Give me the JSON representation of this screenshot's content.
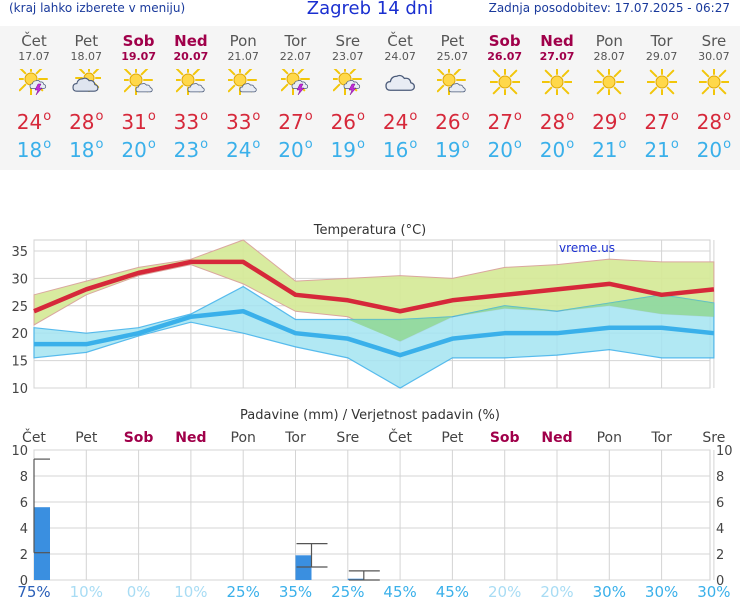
{
  "header": {
    "hint": "(kraj lahko izberete v meniju)",
    "title": "Zagreb 14 dni",
    "updated": "Zadnja posodobitev: 17.07.2025 - 06:27"
  },
  "days": [
    {
      "name": "Čet",
      "date": "17.07",
      "weekend": false,
      "icon": "sun-cloud-thunder-icon",
      "max": "24",
      "min": "18"
    },
    {
      "name": "Pet",
      "date": "18.07",
      "weekend": false,
      "icon": "cloud-sun-icon",
      "max": "28",
      "min": "18"
    },
    {
      "name": "Sob",
      "date": "19.07",
      "weekend": true,
      "icon": "sun-small-cloud-icon",
      "max": "31",
      "min": "20"
    },
    {
      "name": "Ned",
      "date": "20.07",
      "weekend": true,
      "icon": "sun-small-cloud-icon",
      "max": "33",
      "min": "23"
    },
    {
      "name": "Pon",
      "date": "21.07",
      "weekend": false,
      "icon": "sun-small-cloud-icon",
      "max": "33",
      "min": "24"
    },
    {
      "name": "Tor",
      "date": "22.07",
      "weekend": false,
      "icon": "sun-cloud-thunder-icon",
      "max": "27",
      "min": "20"
    },
    {
      "name": "Sre",
      "date": "23.07",
      "weekend": false,
      "icon": "sun-cloud-thunder-icon",
      "max": "26",
      "min": "19"
    },
    {
      "name": "Čet",
      "date": "24.07",
      "weekend": false,
      "icon": "cloud-icon",
      "max": "24",
      "min": "16"
    },
    {
      "name": "Pet",
      "date": "25.07",
      "weekend": false,
      "icon": "sun-small-cloud-icon",
      "max": "26",
      "min": "19"
    },
    {
      "name": "Sob",
      "date": "26.07",
      "weekend": true,
      "icon": "sun-icon",
      "max": "27",
      "min": "20"
    },
    {
      "name": "Ned",
      "date": "27.07",
      "weekend": true,
      "icon": "sun-icon",
      "max": "28",
      "min": "20"
    },
    {
      "name": "Pon",
      "date": "28.07",
      "weekend": false,
      "icon": "sun-icon",
      "max": "29",
      "min": "21"
    },
    {
      "name": "Tor",
      "date": "29.07",
      "weekend": false,
      "icon": "sun-icon",
      "max": "27",
      "min": "21"
    },
    {
      "name": "Sre",
      "date": "30.07",
      "weekend": false,
      "icon": "sun-icon",
      "max": "28",
      "min": "20"
    }
  ],
  "colors": {
    "max": "#d6283a",
    "min": "#3ab0ea",
    "weekend": "#a0004a",
    "max_band": "#d6ea9a",
    "min_band": "#a4e4f2",
    "overlap_band": "#8ed68a",
    "rain_bar": "#3a8fe0",
    "grid": "#d4d4d4"
  },
  "chart_data": [
    {
      "type": "line",
      "title": "Temperatura (°C)",
      "watermark": "vreme.us",
      "categories": [
        "Čet",
        "Pet",
        "Sob",
        "Ned",
        "Pon",
        "Tor",
        "Sre",
        "Čet",
        "Pet",
        "Sob",
        "Ned",
        "Pon",
        "Tor",
        "Sre"
      ],
      "ylim": [
        10,
        37
      ],
      "yticks": [
        10,
        15,
        20,
        25,
        30,
        35
      ],
      "grid": true,
      "series": [
        {
          "values": [
            24,
            28,
            31,
            33,
            33,
            27,
            26,
            24,
            26,
            27,
            28,
            29,
            27,
            28
          ]
        },
        {
          "values": [
            18,
            18,
            20,
            23,
            24,
            20,
            19,
            16,
            19,
            20,
            20,
            21,
            21,
            20
          ]
        }
      ],
      "max_band": {
        "upper": [
          27,
          29.5,
          32,
          33.5,
          37,
          29.5,
          30,
          30.5,
          30,
          32,
          32.5,
          33.5,
          33,
          33
        ],
        "lower": [
          21.5,
          27,
          30.5,
          32.5,
          29,
          24,
          23,
          18.5,
          23,
          24.5,
          24,
          25,
          23.5,
          23
        ]
      },
      "min_band": {
        "upper": [
          21,
          20,
          21,
          23.5,
          28.5,
          22.5,
          22.5,
          22.5,
          23,
          25,
          24,
          25.5,
          27,
          25.5
        ],
        "lower": [
          15.5,
          16.5,
          19.5,
          22,
          20,
          17.5,
          15.5,
          10,
          15.5,
          15.5,
          16,
          17,
          15.5,
          15.5
        ]
      }
    },
    {
      "type": "bar",
      "title": "Padavine (mm) / Verjetnost padavin (%)",
      "categories": [
        "Čet",
        "Pet",
        "Sob",
        "Ned",
        "Pon",
        "Tor",
        "Sre",
        "Čet",
        "Pet",
        "Sob",
        "Ned",
        "Pon",
        "Tor",
        "Sre"
      ],
      "values": [
        5.6,
        0,
        0,
        0,
        0,
        1.9,
        0.1,
        0,
        0,
        0,
        0,
        0,
        0,
        0
      ],
      "range_low": [
        2.1,
        null,
        null,
        null,
        null,
        1.0,
        0.0,
        null,
        null,
        null,
        null,
        null,
        null,
        null
      ],
      "range_high": [
        9.3,
        null,
        null,
        null,
        null,
        2.8,
        0.7,
        null,
        null,
        null,
        null,
        null,
        null,
        null
      ],
      "ylim": [
        0,
        10
      ],
      "yticks": [
        0,
        2,
        4,
        6,
        8,
        10
      ],
      "grid": true,
      "probability": [
        "75%",
        "10%",
        "0%",
        "10%",
        "25%",
        "35%",
        "25%",
        "45%",
        "45%",
        "20%",
        "20%",
        "30%",
        "30%",
        "30%"
      ],
      "probability_colors": [
        "#2a5fb8",
        "#a8dcf4",
        "#a8dcf4",
        "#a8dcf4",
        "#3ab0ea",
        "#3ab0ea",
        "#3ab0ea",
        "#3ab0ea",
        "#3ab0ea",
        "#a8dcf4",
        "#a8dcf4",
        "#3ab0ea",
        "#3ab0ea",
        "#3ab0ea"
      ]
    }
  ]
}
